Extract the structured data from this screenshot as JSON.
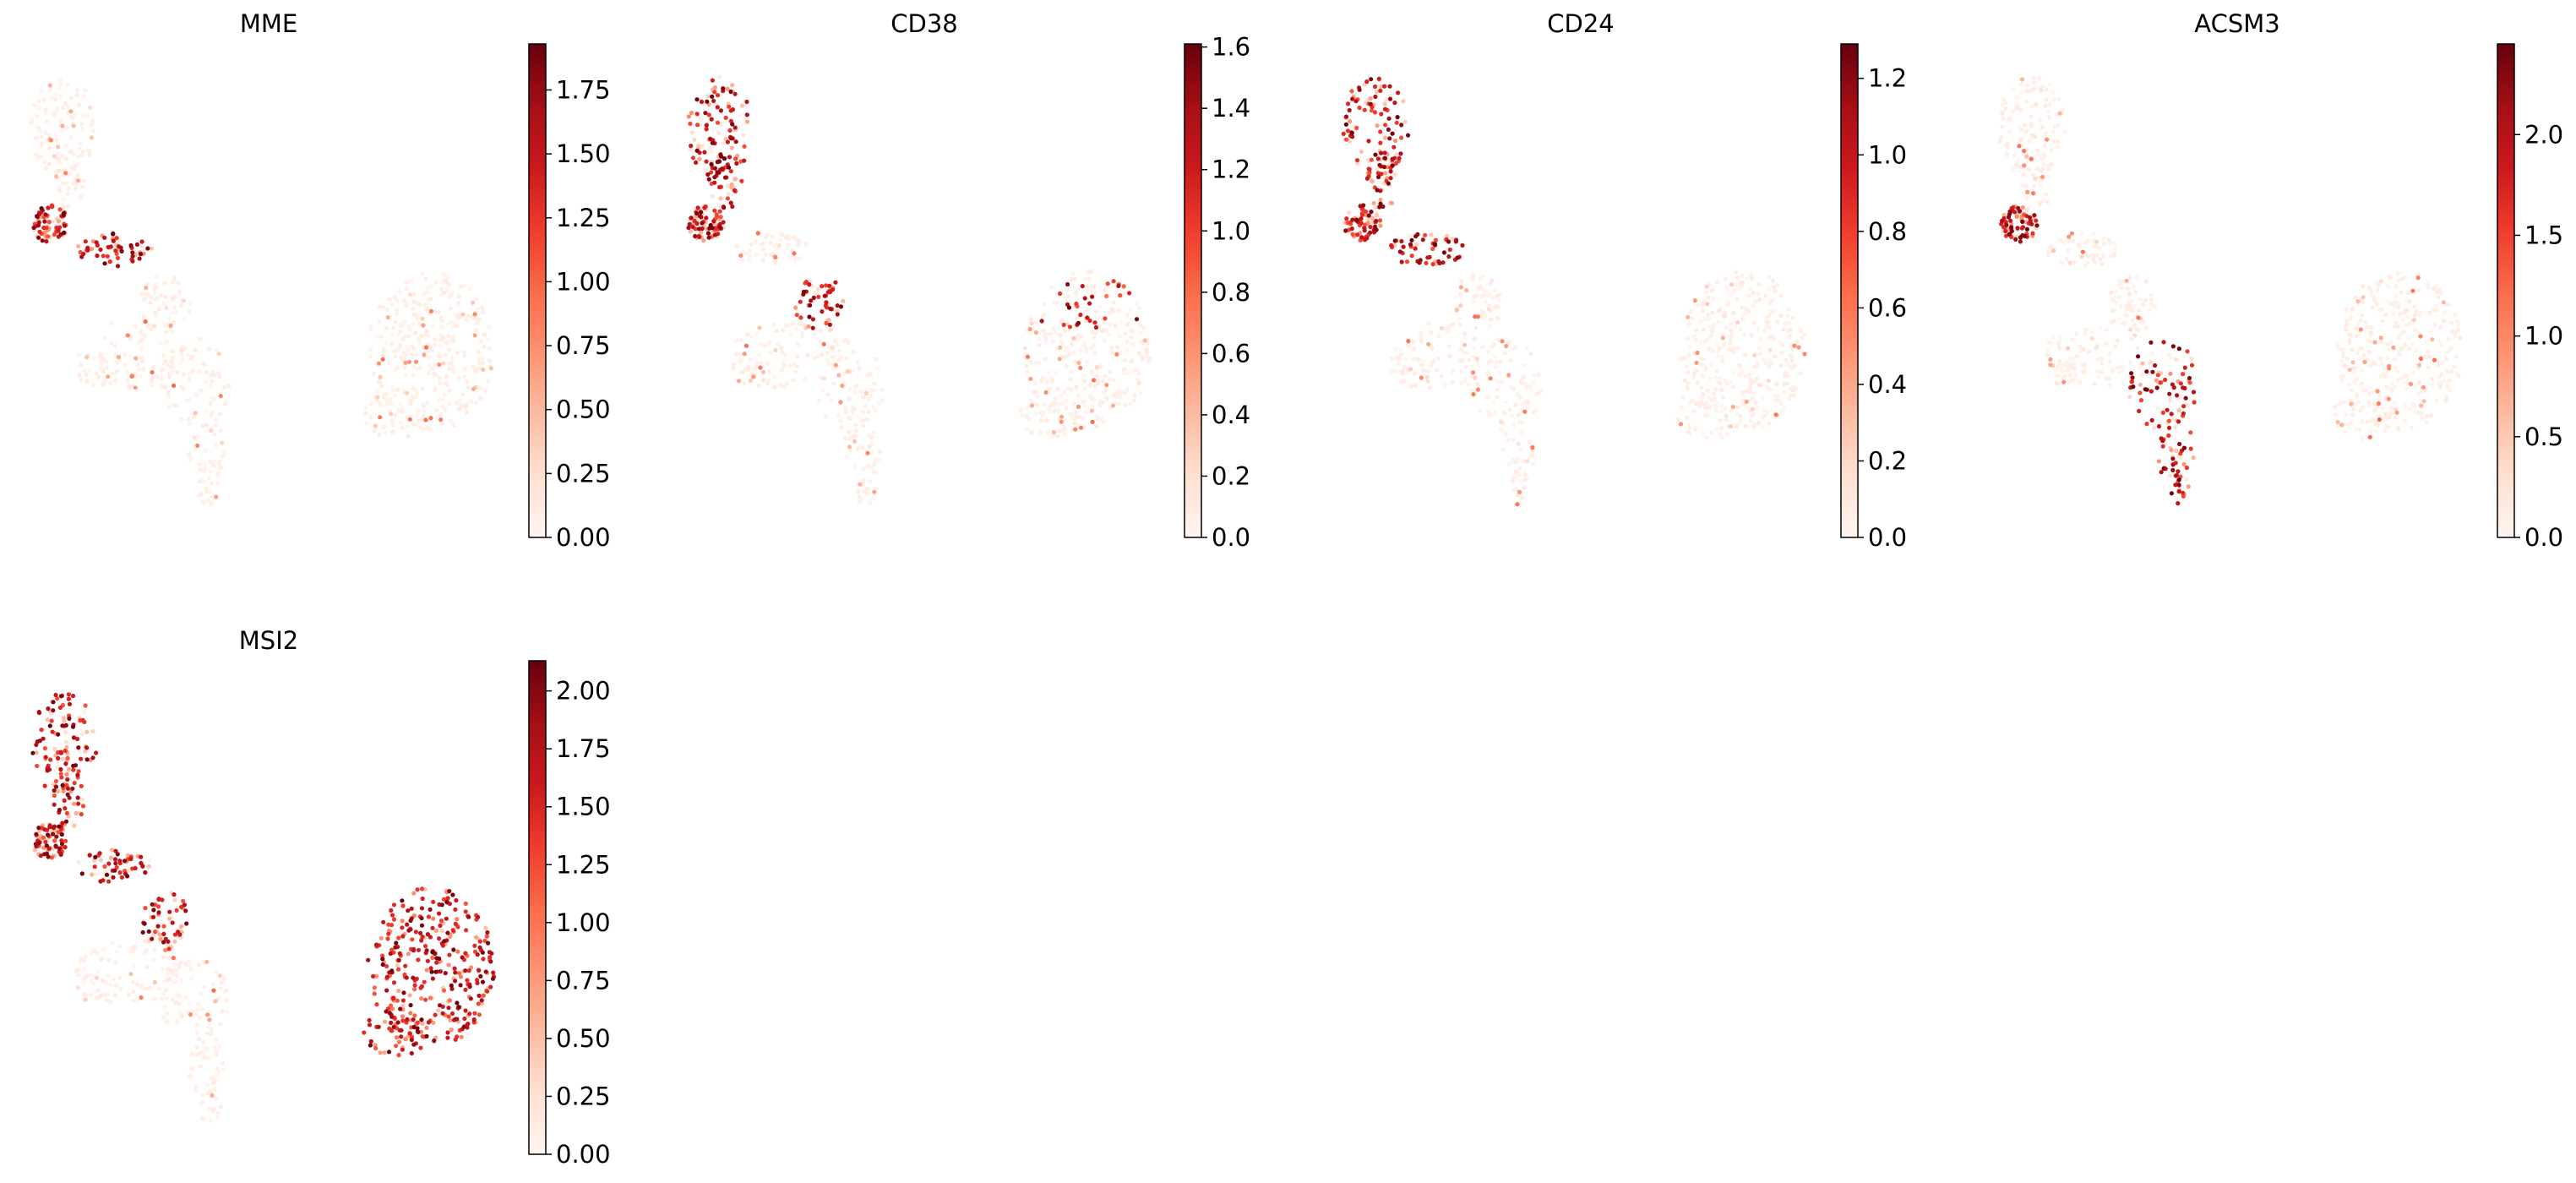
{
  "chart_data": [
    {
      "type": "scatter",
      "title": "MME",
      "xlabel": "",
      "ylabel": "",
      "axes_visible": false,
      "colormap": "Reds",
      "colorbar": {
        "min": 0,
        "max": 1.93,
        "ticks": [
          "0.00",
          "0.25",
          "0.50",
          "0.75",
          "1.00",
          "1.25",
          "1.50",
          "1.75"
        ]
      },
      "high_expression_regions": [
        "left-arm-knob",
        "upper-middle-branch"
      ],
      "approx_points": 900
    },
    {
      "type": "scatter",
      "title": "CD38",
      "xlabel": "",
      "ylabel": "",
      "axes_visible": false,
      "colormap": "Reds",
      "colorbar": {
        "min": 0,
        "max": 1.61,
        "ticks": [
          "0.0",
          "0.2",
          "0.4",
          "0.6",
          "0.8",
          "1.0",
          "1.2",
          "1.4",
          "1.6"
        ]
      },
      "high_expression_regions": [
        "left-arm-knob",
        "upper-stalk",
        "middle-branch",
        "right-cluster-top"
      ],
      "approx_points": 900
    },
    {
      "type": "scatter",
      "title": "CD24",
      "xlabel": "",
      "ylabel": "",
      "axes_visible": false,
      "colormap": "Reds",
      "colorbar": {
        "min": 0,
        "max": 1.29,
        "ticks": [
          "0.0",
          "0.2",
          "0.4",
          "0.6",
          "0.8",
          "1.0",
          "1.2"
        ]
      },
      "high_expression_regions": [
        "left-arm-knob",
        "upper-middle-branch",
        "upper-stalk"
      ],
      "approx_points": 900
    },
    {
      "type": "scatter",
      "title": "ACSM3",
      "xlabel": "",
      "ylabel": "",
      "axes_visible": false,
      "colormap": "Reds",
      "colorbar": {
        "min": 0,
        "max": 2.45,
        "ticks": [
          "0.0",
          "0.5",
          "1.0",
          "1.5",
          "2.0"
        ]
      },
      "high_expression_regions": [
        "left-arm-knob",
        "lower-stalk"
      ],
      "approx_points": 900
    },
    {
      "type": "scatter",
      "title": "MSI2",
      "xlabel": "",
      "ylabel": "",
      "axes_visible": false,
      "colormap": "Reds",
      "colorbar": {
        "min": 0,
        "max": 2.13,
        "ticks": [
          "0.00",
          "0.25",
          "0.50",
          "0.75",
          "1.00",
          "1.25",
          "1.50",
          "1.75",
          "2.00"
        ]
      },
      "high_expression_regions": [
        "left-arm-knob",
        "upper-middle-branch",
        "middle-branch",
        "upper-stalk",
        "right-cluster-all"
      ],
      "approx_points": 1100
    }
  ],
  "style": {
    "colormap_stops": [
      "#fff5f0",
      "#fee0d2",
      "#fcbba1",
      "#fc9272",
      "#fb6a4a",
      "#ef3b2c",
      "#cb181d",
      "#a50f15",
      "#67000d"
    ]
  }
}
